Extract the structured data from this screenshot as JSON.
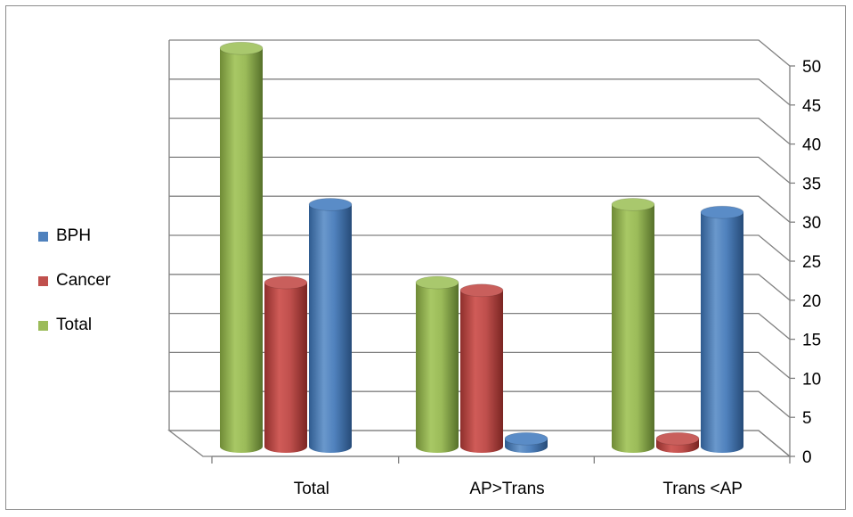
{
  "chart_data": {
    "type": "bar",
    "variant": "3d-cylinder",
    "categories": [
      "Total",
      "AP>Trans",
      "Trans <AP"
    ],
    "series": [
      {
        "name": "Total",
        "values": [
          51,
          21,
          31
        ],
        "color": "#9bbb59"
      },
      {
        "name": "Cancer",
        "values": [
          21,
          20,
          1
        ],
        "color": "#c0504d"
      },
      {
        "name": "BPH",
        "values": [
          31,
          1,
          30
        ],
        "color": "#4f81bd"
      }
    ],
    "legend_order": [
      "BPH",
      "Cancer",
      "Total"
    ],
    "y_ticks": [
      "0",
      "5",
      "10",
      "15",
      "20",
      "25",
      "30",
      "35",
      "40",
      "45",
      "50"
    ],
    "ylim": [
      0,
      50
    ],
    "y_axis_position": "right",
    "grid": true,
    "legend_position": "left",
    "title": "",
    "xlabel": "",
    "ylabel": ""
  }
}
